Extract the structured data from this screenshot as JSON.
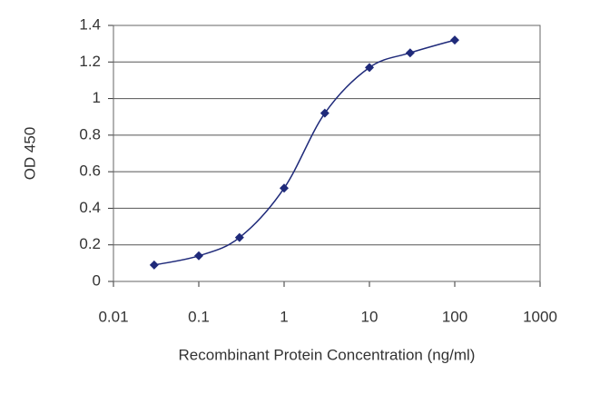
{
  "chart_data": {
    "type": "line",
    "x_label": "Recombinant Protein Concentration (ng/ml)",
    "y_label": "OD 450",
    "x": [
      0.03,
      0.1,
      0.3,
      1,
      3,
      10,
      30,
      100
    ],
    "series": [
      {
        "color": "#1f2a7a",
        "values": [
          0.09,
          0.14,
          0.24,
          0.51,
          0.92,
          1.17,
          1.25,
          1.32
        ]
      }
    ],
    "xscale": "log",
    "xlim": [
      0.01,
      1000
    ],
    "xticks": [
      0.01,
      0.1,
      1,
      10,
      100,
      1000
    ],
    "ylim": [
      0,
      1.4
    ],
    "yticks": [
      0,
      0.2,
      0.4,
      0.6,
      0.8,
      1,
      1.2,
      1.4
    ],
    "grid": true
  }
}
